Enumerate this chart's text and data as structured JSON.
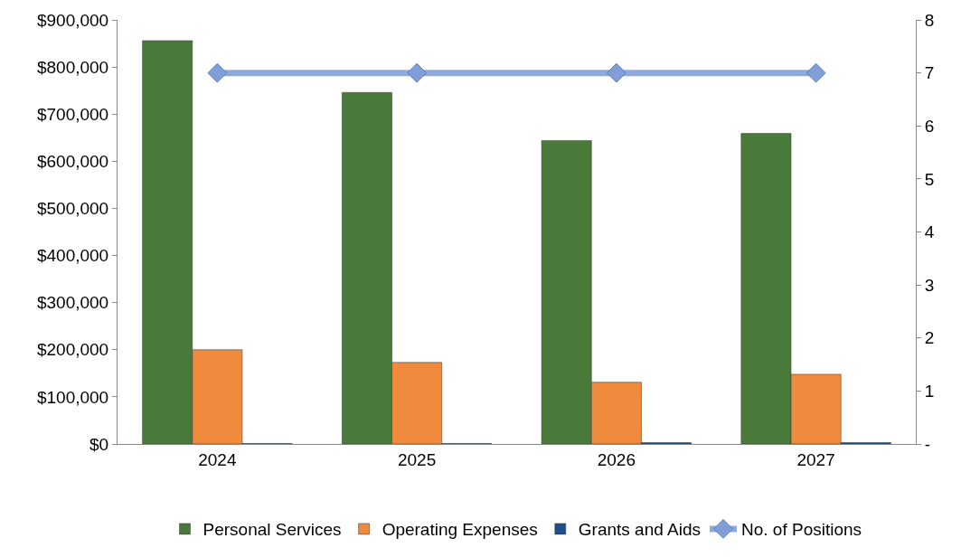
{
  "chart_data": {
    "type": "bar",
    "categories": [
      "2024",
      "2025",
      "2026",
      "2027"
    ],
    "series": [
      {
        "name": "Personal Services",
        "color": "#4a7a3a",
        "values": [
          856000,
          746000,
          644000,
          659000
        ]
      },
      {
        "name": "Operating Expenses",
        "color": "#f08a3c",
        "values": [
          200000,
          173000,
          131000,
          148000
        ]
      },
      {
        "name": "Grants and Aids",
        "color": "#1f4e8c",
        "values": [
          1000,
          1000,
          3000,
          3000
        ]
      },
      {
        "name": "No. of Positions",
        "type": "line",
        "axis": "y2",
        "color": "#8eaadb",
        "marker": "diamond",
        "values": [
          7,
          7,
          7,
          7
        ]
      }
    ],
    "ylim": [
      0,
      900000
    ],
    "yticks": [
      {
        "value": 0,
        "label": "$0"
      },
      {
        "value": 100000,
        "label": "$100,000"
      },
      {
        "value": 200000,
        "label": "$200,000"
      },
      {
        "value": 300000,
        "label": "$300,000"
      },
      {
        "value": 400000,
        "label": "$400,000"
      },
      {
        "value": 500000,
        "label": "$500,000"
      },
      {
        "value": 600000,
        "label": "$600,000"
      },
      {
        "value": 700000,
        "label": "$700,000"
      },
      {
        "value": 800000,
        "label": "$800,000"
      },
      {
        "value": 900000,
        "label": "$900,000"
      }
    ],
    "y2lim": [
      0,
      8
    ],
    "y2ticks": [
      {
        "value": 0,
        "label": "-"
      },
      1,
      2,
      3,
      4,
      5,
      6,
      7,
      8
    ],
    "legend": "bottom"
  }
}
